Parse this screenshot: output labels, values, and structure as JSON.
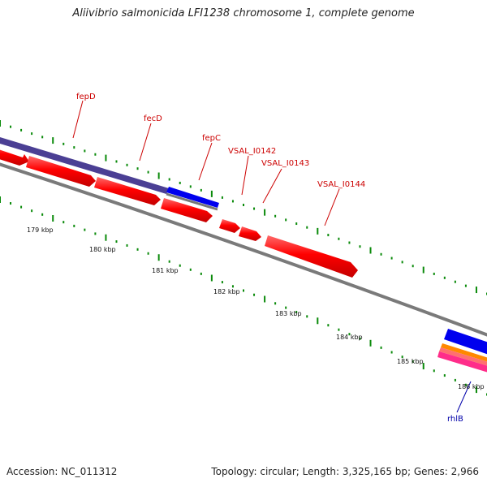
{
  "title": "Aliivibrio salmonicida LFI1238 chromosome 1, complete genome",
  "footer": {
    "accession": "Accession: NC_011312",
    "stats": "Topology: circular; Length: 3,325,165 bp; Genes: 2,966"
  },
  "colors": {
    "forward_gene": "#ff0000",
    "operon_span": "#4b3f94",
    "highlight_gene": "#0000ff",
    "backbone": "#808080",
    "tick": "#0a8a0a",
    "gene_label": "#cc0000",
    "rna_label": "#0000aa"
  },
  "scale": {
    "tick_labels": [
      "179 kbp",
      "180 kbp",
      "181 kbp",
      "182 kbp",
      "183 kbp",
      "184 kbp",
      "185 kbp",
      "186 kbp"
    ]
  },
  "gene_labels": [
    {
      "name": "fepD"
    },
    {
      "name": "fecD"
    },
    {
      "name": "fepC"
    },
    {
      "name": "VSAL_I0142"
    },
    {
      "name": "VSAL_I0143"
    },
    {
      "name": "VSAL_I0144"
    },
    {
      "name": "rhlB"
    }
  ]
}
